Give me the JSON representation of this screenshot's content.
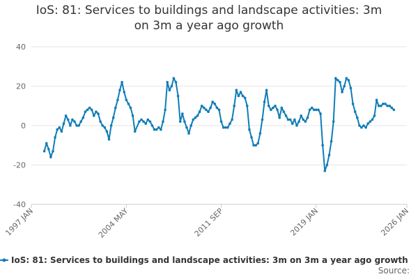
{
  "chart_data": {
    "type": "line",
    "title": "IoS: 81: Services to buildings and landscape activities: 3m on 3m a year ago growth",
    "xlabel": "",
    "ylabel": "",
    "ylim": [
      -40,
      40
    ],
    "yticks": [
      -40,
      -20,
      0,
      20,
      40
    ],
    "xticks": [
      "1997 JAN",
      "2004 MAY",
      "2011 SEP",
      "2019 JAN",
      "2026 JAN"
    ],
    "grid": true,
    "legend_position": "bottom",
    "source_label": "Source:",
    "series": [
      {
        "name": "IoS: 81: Services to buildings and landscape activities: 3m on 3m a year ago growth",
        "color": "#0f7cb6",
        "points": [
          [
            "1998-01",
            -13
          ],
          [
            "1998-03",
            -9
          ],
          [
            "1998-05",
            -12
          ],
          [
            "1998-07",
            -16
          ],
          [
            "1998-09",
            -13
          ],
          [
            "1998-11",
            -6
          ],
          [
            "1999-01",
            -2
          ],
          [
            "1999-03",
            -1
          ],
          [
            "1999-05",
            -3
          ],
          [
            "1999-07",
            1
          ],
          [
            "1999-09",
            5
          ],
          [
            "1999-11",
            3
          ],
          [
            "2000-01",
            0
          ],
          [
            "2000-03",
            3
          ],
          [
            "2000-05",
            2
          ],
          [
            "2000-07",
            0
          ],
          [
            "2000-09",
            0
          ],
          [
            "2000-11",
            2
          ],
          [
            "2001-01",
            4
          ],
          [
            "2001-03",
            7
          ],
          [
            "2001-05",
            8
          ],
          [
            "2001-07",
            9
          ],
          [
            "2001-09",
            8
          ],
          [
            "2001-11",
            5
          ],
          [
            "2002-01",
            7
          ],
          [
            "2002-03",
            6
          ],
          [
            "2002-05",
            2
          ],
          [
            "2002-07",
            0
          ],
          [
            "2002-09",
            -1
          ],
          [
            "2002-11",
            -3
          ],
          [
            "2003-01",
            -7
          ],
          [
            "2003-03",
            0
          ],
          [
            "2003-05",
            4
          ],
          [
            "2003-07",
            9
          ],
          [
            "2003-09",
            13
          ],
          [
            "2003-11",
            18
          ],
          [
            "2004-01",
            22
          ],
          [
            "2004-03",
            17
          ],
          [
            "2004-05",
            13
          ],
          [
            "2004-07",
            11
          ],
          [
            "2004-09",
            9
          ],
          [
            "2004-11",
            5
          ],
          [
            "2005-01",
            -3
          ],
          [
            "2005-05",
            2
          ],
          [
            "2005-07",
            3
          ],
          [
            "2005-09",
            2
          ],
          [
            "2005-11",
            1
          ],
          [
            "2006-01",
            3
          ],
          [
            "2006-03",
            2
          ],
          [
            "2006-05",
            0
          ],
          [
            "2006-07",
            -2
          ],
          [
            "2006-09",
            -2
          ],
          [
            "2006-11",
            -1
          ],
          [
            "2007-01",
            -2
          ],
          [
            "2007-03",
            2
          ],
          [
            "2007-05",
            8
          ],
          [
            "2007-07",
            22
          ],
          [
            "2007-09",
            18
          ],
          [
            "2007-11",
            20
          ],
          [
            "2008-01",
            24
          ],
          [
            "2008-03",
            22
          ],
          [
            "2008-05",
            15
          ],
          [
            "2008-07",
            2
          ],
          [
            "2008-09",
            6
          ],
          [
            "2008-11",
            2
          ],
          [
            "2009-01",
            -1
          ],
          [
            "2009-03",
            -4
          ],
          [
            "2009-05",
            0
          ],
          [
            "2009-07",
            3
          ],
          [
            "2009-09",
            4
          ],
          [
            "2009-11",
            5
          ],
          [
            "2010-01",
            7
          ],
          [
            "2010-03",
            10
          ],
          [
            "2010-05",
            9
          ],
          [
            "2010-07",
            8
          ],
          [
            "2010-09",
            7
          ],
          [
            "2010-11",
            9
          ],
          [
            "2011-01",
            12
          ],
          [
            "2011-03",
            11
          ],
          [
            "2011-05",
            9
          ],
          [
            "2011-07",
            8
          ],
          [
            "2011-09",
            2
          ],
          [
            "2011-11",
            -1
          ],
          [
            "2012-01",
            -1
          ],
          [
            "2012-03",
            -1
          ],
          [
            "2012-05",
            1
          ],
          [
            "2012-07",
            3
          ],
          [
            "2012-09",
            10
          ],
          [
            "2012-11",
            18
          ],
          [
            "2013-01",
            15
          ],
          [
            "2013-03",
            17
          ],
          [
            "2013-05",
            15
          ],
          [
            "2013-07",
            14
          ],
          [
            "2013-09",
            10
          ],
          [
            "2013-11",
            -2
          ],
          [
            "2014-01",
            -6
          ],
          [
            "2014-03",
            -10
          ],
          [
            "2014-05",
            -10
          ],
          [
            "2014-07",
            -9
          ],
          [
            "2014-09",
            -4
          ],
          [
            "2014-11",
            3
          ],
          [
            "2015-01",
            12
          ],
          [
            "2015-03",
            18
          ],
          [
            "2015-05",
            10
          ],
          [
            "2015-07",
            8
          ],
          [
            "2015-09",
            9
          ],
          [
            "2015-11",
            10
          ],
          [
            "2016-01",
            8
          ],
          [
            "2016-03",
            4
          ],
          [
            "2016-05",
            9
          ],
          [
            "2016-07",
            7
          ],
          [
            "2016-09",
            5
          ],
          [
            "2016-11",
            3
          ],
          [
            "2017-01",
            3
          ],
          [
            "2017-03",
            1
          ],
          [
            "2017-05",
            3
          ],
          [
            "2017-07",
            0
          ],
          [
            "2017-09",
            2
          ],
          [
            "2017-11",
            5
          ],
          [
            "2018-01",
            3
          ],
          [
            "2018-03",
            2
          ],
          [
            "2018-05",
            4
          ],
          [
            "2018-07",
            8
          ],
          [
            "2018-09",
            9
          ],
          [
            "2018-11",
            8
          ],
          [
            "2019-01",
            8
          ],
          [
            "2019-03",
            8
          ],
          [
            "2019-05",
            6
          ],
          [
            "2019-07",
            -10
          ],
          [
            "2019-09",
            -23
          ],
          [
            "2019-11",
            -20
          ],
          [
            "2020-01",
            -15
          ],
          [
            "2020-03",
            -8
          ],
          [
            "2020-05",
            2
          ],
          [
            "2020-07",
            24
          ],
          [
            "2020-09",
            23
          ],
          [
            "2020-11",
            22
          ],
          [
            "2021-01",
            17
          ],
          [
            "2021-03",
            20
          ],
          [
            "2021-05",
            24
          ],
          [
            "2021-07",
            23
          ],
          [
            "2021-09",
            19
          ],
          [
            "2021-11",
            11
          ],
          [
            "2022-01",
            7
          ],
          [
            "2022-03",
            4
          ],
          [
            "2022-05",
            0
          ],
          [
            "2022-07",
            -1
          ],
          [
            "2022-09",
            0
          ],
          [
            "2022-11",
            -1
          ],
          [
            "2023-01",
            1
          ],
          [
            "2023-03",
            2
          ],
          [
            "2023-05",
            3
          ],
          [
            "2023-07",
            5
          ],
          [
            "2023-09",
            13
          ],
          [
            "2023-11",
            10
          ],
          [
            "2024-01",
            10
          ],
          [
            "2024-03",
            11
          ],
          [
            "2024-05",
            11
          ],
          [
            "2024-07",
            10
          ],
          [
            "2024-09",
            10
          ],
          [
            "2024-11",
            9
          ],
          [
            "2025-01",
            8
          ]
        ]
      }
    ]
  }
}
